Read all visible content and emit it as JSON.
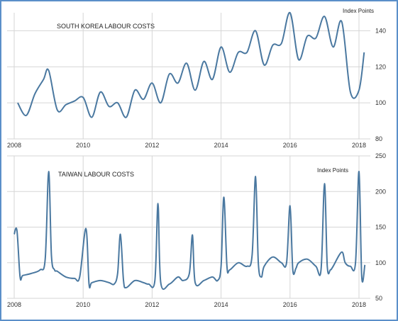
{
  "chart_data": [
    {
      "type": "line",
      "title": "SOUTH KOREA LABOUR COSTS",
      "unit_label": "Index Points",
      "ylim": [
        80,
        150
      ],
      "yticks": [
        80,
        100,
        120,
        140
      ],
      "xlim": [
        2008,
        2018.4
      ],
      "xticks": [
        2008,
        2010,
        2012,
        2014,
        2016,
        2018
      ],
      "grid": true,
      "color": "#4a78a0",
      "series": [
        {
          "x": [
            2008.1,
            2008.35,
            2008.6,
            2008.85,
            2009.0,
            2009.25,
            2009.5,
            2009.75,
            2010.0,
            2010.25,
            2010.5,
            2010.75,
            2011.0,
            2011.25,
            2011.5,
            2011.75,
            2012.0,
            2012.25,
            2012.5,
            2012.75,
            2013.0,
            2013.25,
            2013.5,
            2013.75,
            2014.0,
            2014.25,
            2014.5,
            2014.75,
            2015.0,
            2015.25,
            2015.5,
            2015.75,
            2016.0,
            2016.25,
            2016.5,
            2016.75,
            2017.0,
            2017.25,
            2017.5,
            2017.75,
            2018.0,
            2018.15
          ],
          "y": [
            100,
            93,
            105,
            113,
            118,
            96,
            99,
            101,
            103,
            92,
            106,
            98,
            100,
            92,
            107,
            102,
            111,
            100,
            116,
            111,
            122,
            107,
            123,
            113,
            131,
            117,
            128,
            128,
            140,
            121,
            132,
            133,
            150,
            124,
            137,
            136,
            148,
            131,
            145,
            106,
            107,
            128
          ]
        }
      ]
    },
    {
      "type": "line",
      "title": "TAIWAN LABOUR COSTS",
      "unit_label": "Index Points",
      "ylim": [
        50,
        250
      ],
      "yticks": [
        50,
        100,
        150,
        200,
        250
      ],
      "xlim": [
        2008,
        2018.4
      ],
      "xticks": [
        2008,
        2010,
        2012,
        2014,
        2016,
        2018
      ],
      "grid": true,
      "color": "#4a78a0",
      "series": [
        {
          "x": [
            2008.0,
            2008.08,
            2008.17,
            2008.25,
            2008.5,
            2008.75,
            2008.9,
            2009.0,
            2009.08,
            2009.17,
            2009.25,
            2009.5,
            2009.75,
            2009.9,
            2010.08,
            2010.17,
            2010.25,
            2010.5,
            2010.75,
            2010.9,
            2011.0,
            2011.08,
            2011.17,
            2011.25,
            2011.5,
            2011.75,
            2011.9,
            2012.08,
            2012.17,
            2012.25,
            2012.5,
            2012.75,
            2012.9,
            2013.08,
            2013.17,
            2013.25,
            2013.5,
            2013.75,
            2013.9,
            2014.0,
            2014.08,
            2014.17,
            2014.25,
            2014.5,
            2014.75,
            2014.9,
            2015.0,
            2015.08,
            2015.17,
            2015.25,
            2015.5,
            2015.75,
            2015.9,
            2016.0,
            2016.08,
            2016.17,
            2016.25,
            2016.5,
            2016.75,
            2016.9,
            2017.0,
            2017.08,
            2017.17,
            2017.25,
            2017.5,
            2017.6,
            2017.75,
            2017.9,
            2018.0,
            2018.08,
            2018.17
          ],
          "y": [
            140,
            145,
            80,
            82,
            85,
            90,
            105,
            228,
            110,
            90,
            88,
            80,
            78,
            80,
            148,
            70,
            72,
            75,
            72,
            70,
            85,
            140,
            75,
            65,
            75,
            72,
            70,
            75,
            183,
            72,
            70,
            80,
            75,
            85,
            139,
            72,
            75,
            80,
            75,
            95,
            192,
            95,
            90,
            100,
            95,
            110,
            221,
            100,
            80,
            95,
            108,
            100,
            100,
            180,
            90,
            92,
            100,
            105,
            95,
            90,
            211,
            95,
            90,
            95,
            115,
            100,
            95,
            100,
            228,
            80,
            97
          ]
        }
      ]
    }
  ]
}
